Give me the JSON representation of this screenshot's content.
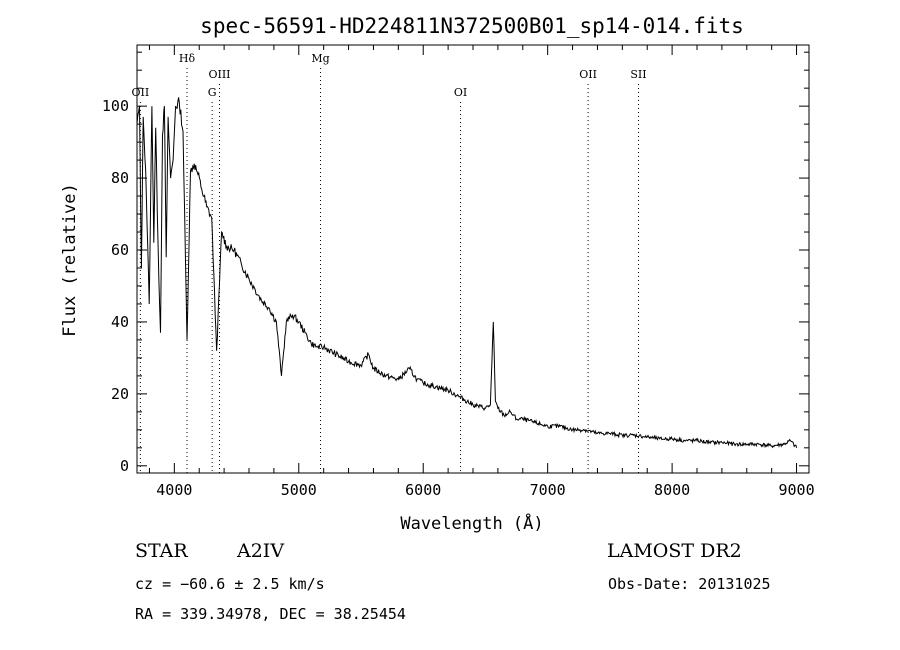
{
  "chart_data": {
    "type": "line",
    "title": "spec-56591-HD224811N372500B01_sp14-014.fits",
    "xlabel": "Wavelength (Å)",
    "ylabel": "Flux (relative)",
    "xlim": [
      3700,
      9100
    ],
    "ylim": [
      -2,
      117
    ],
    "x_ticks": [
      4000,
      5000,
      6000,
      7000,
      8000,
      9000
    ],
    "y_ticks": [
      0,
      20,
      40,
      60,
      80,
      100
    ],
    "grid": false,
    "series": [
      {
        "x": [
          3700,
          3720,
          3735,
          3750,
          3770,
          3798,
          3820,
          3835,
          3850,
          3870,
          3889,
          3905,
          3920,
          3935,
          3950,
          3970,
          3990,
          4010,
          4040,
          4070,
          4102,
          4130,
          4160,
          4190,
          4220,
          4260,
          4300,
          4340,
          4380,
          4420,
          4480,
          4540,
          4600,
          4650,
          4700,
          4760,
          4820,
          4861,
          4900,
          4950,
          5000,
          5050,
          5100,
          5150,
          5200,
          5300,
          5400,
          5500,
          5560,
          5600,
          5700,
          5800,
          5890,
          5950,
          6000,
          6100,
          6200,
          6300,
          6400,
          6500,
          6540,
          6563,
          6580,
          6600,
          6650,
          6700,
          6750,
          6800,
          6900,
          7000,
          7100,
          7200,
          7300,
          7400,
          7500,
          7600,
          7700,
          7800,
          7900,
          8000,
          8100,
          8200,
          8300,
          8400,
          8500,
          8600,
          8700,
          8800,
          8900,
          8950,
          9000
        ],
        "y": [
          95,
          100,
          55,
          97,
          82,
          45,
          100,
          62,
          94,
          60,
          37,
          92,
          100,
          58,
          97,
          80,
          85,
          100,
          101,
          93,
          35,
          82,
          84,
          81,
          77,
          72,
          69,
          32,
          65,
          61,
          60,
          56,
          52,
          49,
          46,
          44,
          40,
          25,
          40,
          42,
          40,
          37,
          34,
          33,
          33,
          31,
          29,
          28,
          31,
          27,
          25,
          24,
          27,
          24,
          23,
          22,
          21,
          19,
          17,
          16,
          17,
          40,
          18,
          16,
          14,
          15,
          13,
          13,
          12,
          11,
          11,
          10,
          10,
          9,
          9,
          8.5,
          8.5,
          8,
          7.5,
          7.5,
          7,
          7,
          6.5,
          6.5,
          6,
          6,
          6,
          5.5,
          6,
          7,
          5
        ]
      }
    ],
    "lines": [
      {
        "label": "OII",
        "x": 3727,
        "row": 3
      },
      {
        "label": "Hδ",
        "x": 4102,
        "row": 1
      },
      {
        "label": "OIII",
        "x": 4363,
        "row": 2
      },
      {
        "label": "G",
        "x": 4304,
        "row": 3
      },
      {
        "label": "Mg",
        "x": 5175,
        "row": 1
      },
      {
        "label": "OI",
        "x": 6300,
        "row": 3
      },
      {
        "label": "OII",
        "x": 7325,
        "row": 2
      },
      {
        "label": "SII",
        "x": 7730,
        "row": 2
      }
    ]
  },
  "info": {
    "object_class": "STAR",
    "subclass": "A2IV",
    "velocity": "cz = −60.6 ± 2.5 km/s",
    "coordinates": "RA = 339.34978, DEC =  38.25454",
    "survey": "LAMOST DR2",
    "obs_date": "Obs-Date: 20131025"
  }
}
